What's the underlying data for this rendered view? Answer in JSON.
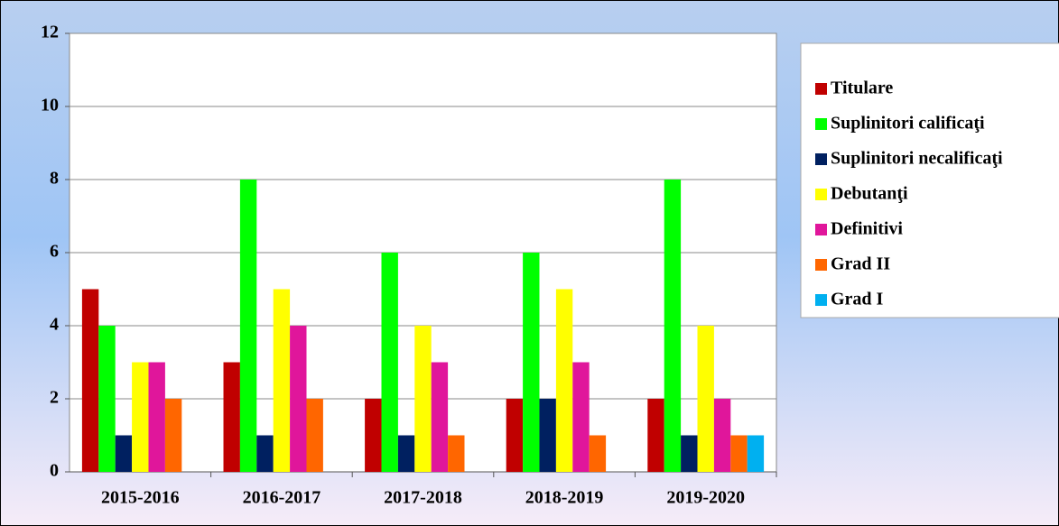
{
  "chart_data": {
    "type": "bar",
    "categories": [
      "2015-2016",
      "2016-2017",
      "2017-2018",
      "2018-2019",
      "2019-2020"
    ],
    "series": [
      {
        "name": "Titulare",
        "color": "#c00000",
        "values": [
          5,
          3,
          2,
          2,
          2
        ]
      },
      {
        "name": "Suplinitori calificaţi",
        "color": "#00ff00",
        "values": [
          4,
          8,
          6,
          6,
          8
        ]
      },
      {
        "name": "Suplinitori necalificaţi",
        "color": "#002060",
        "values": [
          1,
          1,
          1,
          2,
          1
        ]
      },
      {
        "name": "Debutanţi",
        "color": "#ffff00",
        "values": [
          3,
          5,
          4,
          5,
          4
        ]
      },
      {
        "name": "Definitivi",
        "color": "#e0169b",
        "values": [
          3,
          4,
          3,
          3,
          2
        ]
      },
      {
        "name": "Grad II",
        "color": "#ff6600",
        "values": [
          2,
          2,
          1,
          1,
          1
        ]
      },
      {
        "name": "Grad I",
        "color": "#00b0f0",
        "values": [
          0,
          0,
          0,
          0,
          1
        ]
      }
    ],
    "ylim": [
      0,
      12
    ],
    "yticks": [
      0,
      2,
      4,
      6,
      8,
      10,
      12
    ],
    "grid": true,
    "legend": "right"
  }
}
